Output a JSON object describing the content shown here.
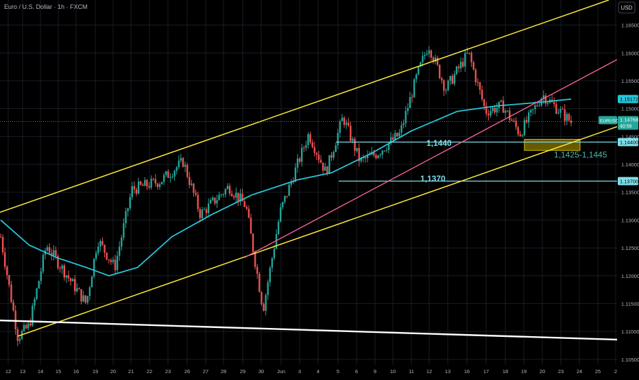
{
  "header": {
    "symbol_title": "Euro / U.S. Dollar · 1h · FXCM",
    "currency_label": "USD"
  },
  "colors": {
    "background": "#000000",
    "grid": "#1a1d26",
    "axis_text": "#b2b5be",
    "candle_up": "#26a69a",
    "candle_down": "#ef5350",
    "moving_average": "#26c6da",
    "channel_line": "#ffeb3b",
    "trend_line": "#f06292",
    "long_trend_line": "#ffffff",
    "support_line": "#80deea",
    "zone_fill": "#7a6a00",
    "zone_border": "#d4c000"
  },
  "chart_data": {
    "type": "candlestick",
    "symbol": "EURUSD",
    "timeframe": "1h",
    "y_axis": {
      "ticks": [
        "1.16500",
        "1.16000",
        "1.15500",
        "1.15000",
        "1.14500",
        "1.14000",
        "1.13500",
        "1.13000",
        "1.12500",
        "1.12000",
        "1.11500",
        "1.11000",
        "1.10500"
      ],
      "range": [
        1.104,
        1.1695
      ]
    },
    "x_axis": {
      "ticks": [
        "12",
        "13",
        "14",
        "15",
        "16",
        "19",
        "20",
        "21",
        "22",
        "23",
        "26",
        "27",
        "28",
        "29",
        "30",
        "Jun",
        "3",
        "4",
        "5",
        "6",
        "9",
        "10",
        "11",
        "12",
        "13",
        "16",
        "17",
        "18",
        "19",
        "20",
        "23",
        "24",
        "25",
        "2"
      ]
    },
    "price_path": [
      [
        0,
        1.127
      ],
      [
        0.03,
        1.109
      ],
      [
        0.05,
        1.111
      ],
      [
        0.08,
        1.1255
      ],
      [
        0.11,
        1.121
      ],
      [
        0.15,
        1.115
      ],
      [
        0.17,
        1.1265
      ],
      [
        0.2,
        1.1215
      ],
      [
        0.23,
        1.1355
      ],
      [
        0.28,
        1.137
      ],
      [
        0.32,
        1.1405
      ],
      [
        0.35,
        1.131
      ],
      [
        0.4,
        1.136
      ],
      [
        0.43,
        1.1325
      ],
      [
        0.46,
        1.114
      ],
      [
        0.49,
        1.1315
      ],
      [
        0.54,
        1.1455
      ],
      [
        0.57,
        1.1385
      ],
      [
        0.6,
        1.1485
      ],
      [
        0.63,
        1.1405
      ],
      [
        0.66,
        1.142
      ],
      [
        0.7,
        1.1455
      ],
      [
        0.73,
        1.156
      ],
      [
        0.75,
        1.1615
      ],
      [
        0.78,
        1.1535
      ],
      [
        0.82,
        1.16
      ],
      [
        0.85,
        1.1495
      ],
      [
        0.88,
        1.1505
      ],
      [
        0.91,
        1.1455
      ],
      [
        0.95,
        1.1525
      ],
      [
        1.0,
        1.1476
      ]
    ],
    "moving_average": [
      [
        0,
        1.13
      ],
      [
        0.05,
        1.1255
      ],
      [
        0.1,
        1.1232
      ],
      [
        0.15,
        1.1215
      ],
      [
        0.19,
        1.12
      ],
      [
        0.24,
        1.1215
      ],
      [
        0.3,
        1.127
      ],
      [
        0.37,
        1.131
      ],
      [
        0.44,
        1.1345
      ],
      [
        0.52,
        1.1372
      ],
      [
        0.58,
        1.1385
      ],
      [
        0.65,
        1.142
      ],
      [
        0.72,
        1.146
      ],
      [
        0.8,
        1.1495
      ],
      [
        0.87,
        1.1505
      ],
      [
        0.93,
        1.151
      ],
      [
        1.0,
        1.1517
      ]
    ],
    "price_labels": [
      {
        "name": "ma-price-label",
        "value": 1.15172,
        "text": "1.15172"
      },
      {
        "name": "last-price-label",
        "value": 1.14768,
        "symbol": "EURUSD",
        "text": "1.14768",
        "countdown": "40:56"
      },
      {
        "name": "level-1440-price-label",
        "value": 1.144,
        "text": "1.14400"
      },
      {
        "name": "level-1370-price-label",
        "value": 1.137,
        "text": "1.13700"
      }
    ],
    "annotations": [
      {
        "name": "annotation-1440",
        "text": "1,1440",
        "level": 1.144
      },
      {
        "name": "annotation-1370",
        "text": "1,1370",
        "level": 1.137
      },
      {
        "name": "annotation-zone",
        "text": "1,1425-1,1445",
        "range": [
          1.1425,
          1.1445
        ]
      }
    ]
  }
}
